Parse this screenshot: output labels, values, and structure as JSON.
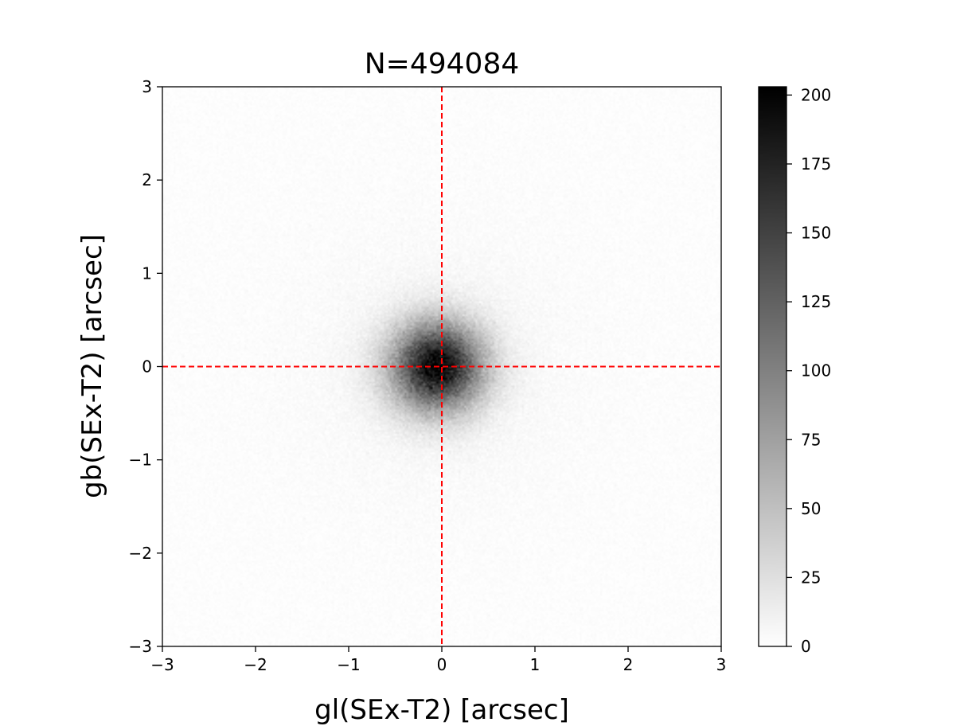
{
  "chart_data": {
    "type": "heatmap",
    "title": "N=494084",
    "xlabel": "gl(SEx-T2) [arcsec]",
    "ylabel": "gb(SEx-T2) [arcsec]",
    "xlim": [
      -3,
      3
    ],
    "ylim": [
      -3,
      3
    ],
    "x_ticks": [
      -3,
      -2,
      -1,
      0,
      1,
      2,
      3
    ],
    "x_tick_labels": [
      "−3",
      "−2",
      "−1",
      "0",
      "1",
      "2",
      "3"
    ],
    "y_ticks": [
      -3,
      -2,
      -1,
      0,
      1,
      2,
      3
    ],
    "y_tick_labels": [
      "−3",
      "−2",
      "−1",
      "0",
      "1",
      "2",
      "3"
    ],
    "distribution": {
      "shape": "2D gaussian-like density",
      "center": [
        -0.05,
        0.0
      ],
      "sigma_x": 0.33,
      "sigma_y": 0.32,
      "peak_count": 203
    },
    "colormap": "gray_r",
    "colorbar": {
      "min": 0,
      "max": 203,
      "ticks": [
        0,
        25,
        50,
        75,
        100,
        125,
        150,
        175,
        200
      ],
      "tick_labels": [
        "0",
        "25",
        "50",
        "75",
        "100",
        "125",
        "150",
        "175",
        "200"
      ]
    },
    "reference_lines": [
      {
        "orientation": "vertical",
        "value": 0,
        "color": "#ff0000",
        "style": "dashed"
      },
      {
        "orientation": "horizontal",
        "value": 0,
        "color": "#ff0000",
        "style": "dashed"
      }
    ],
    "grid": false
  }
}
